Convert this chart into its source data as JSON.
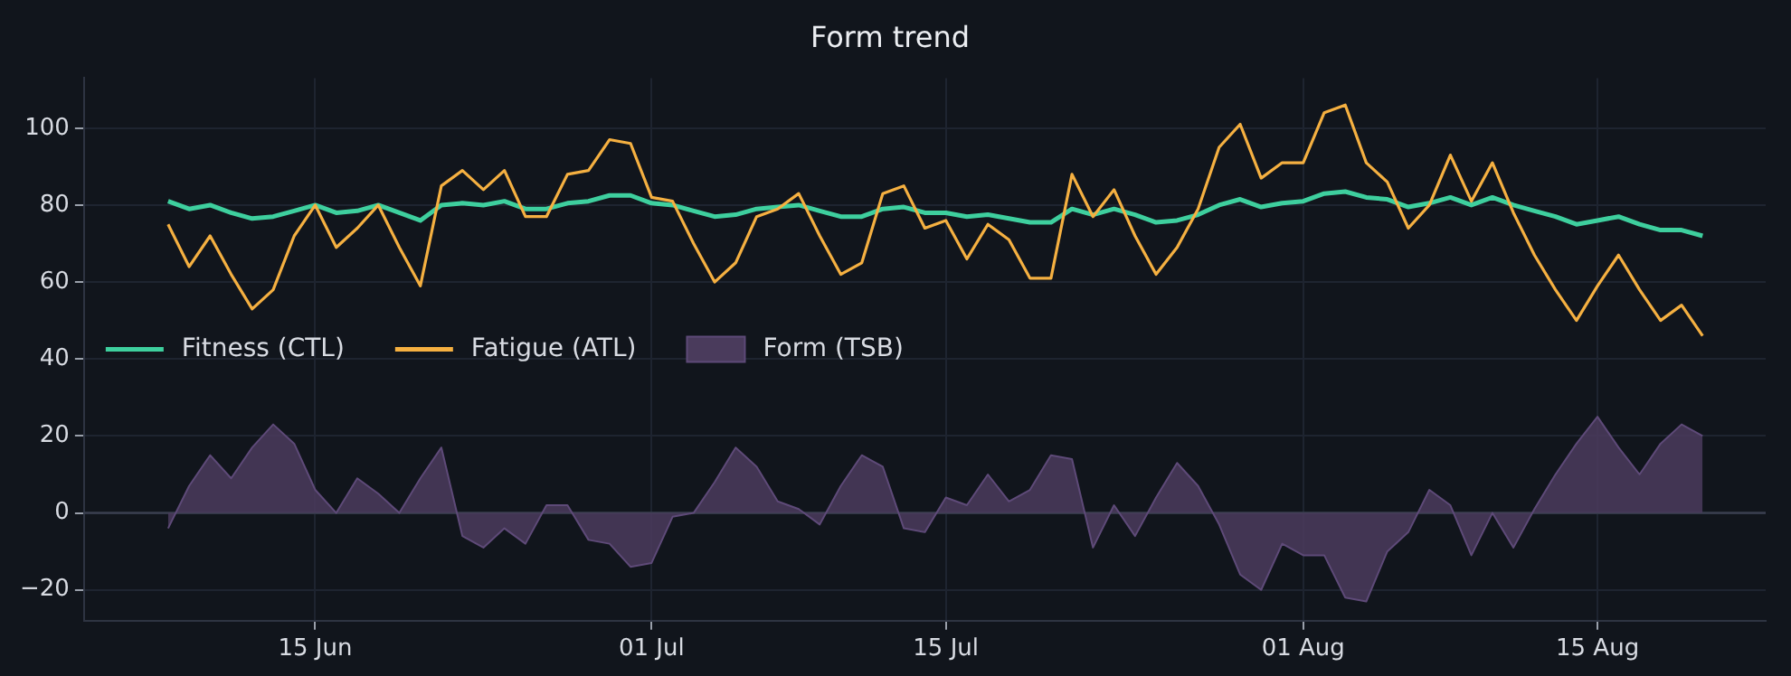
{
  "chart_data": {
    "type": "line",
    "title": "Form trend",
    "x": [
      "--06-08",
      "--06-09",
      "--06-10",
      "--06-11",
      "--06-12",
      "--06-13",
      "--06-14",
      "--06-15",
      "--06-16",
      "--06-17",
      "--06-18",
      "--06-19",
      "--06-20",
      "--06-21",
      "--06-22",
      "--06-23",
      "--06-24",
      "--06-25",
      "--06-26",
      "--06-27",
      "--06-28",
      "--06-29",
      "--06-30",
      "--07-01",
      "--07-02",
      "--07-03",
      "--07-04",
      "--07-05",
      "--07-06",
      "--07-07",
      "--07-08",
      "--07-09",
      "--07-10",
      "--07-11",
      "--07-12",
      "--07-13",
      "--07-14",
      "--07-15",
      "--07-16",
      "--07-17",
      "--07-18",
      "--07-19",
      "--07-20",
      "--07-21",
      "--07-22",
      "--07-23",
      "--07-24",
      "--07-25",
      "--07-26",
      "--07-27",
      "--07-28",
      "--07-29",
      "--07-30",
      "--07-31",
      "--08-01",
      "--08-02",
      "--08-03",
      "--08-04",
      "--08-05",
      "--08-06",
      "--08-07",
      "--08-08",
      "--08-09",
      "--08-10",
      "--08-11",
      "--08-12",
      "--08-13",
      "--08-14",
      "--08-15",
      "--08-16",
      "--08-17",
      "--08-18",
      "--08-19",
      "--08-20"
    ],
    "series": [
      {
        "name": "Fitness (CTL)",
        "color": "#3ecf9e",
        "values": [
          81,
          79,
          80,
          78,
          76.5,
          77,
          78.5,
          80,
          78,
          78.5,
          80,
          78,
          76,
          80,
          80.5,
          80,
          81,
          79,
          79,
          80.5,
          81,
          82.5,
          82.5,
          80.5,
          80,
          78.5,
          77,
          77.5,
          79,
          79.5,
          80,
          78.5,
          77,
          77,
          79,
          79.5,
          78,
          78,
          77,
          77.5,
          76.5,
          75.5,
          75.5,
          79,
          77.5,
          79,
          77.5,
          75.5,
          76,
          77.5,
          80,
          81.5,
          79.5,
          80.5,
          81,
          83,
          83.5,
          82,
          81.5,
          79.5,
          80.5,
          82,
          80,
          82,
          80,
          78.5,
          77,
          75,
          76,
          77,
          75,
          73.5,
          73.5,
          72
        ]
      },
      {
        "name": "Fatigue (ATL)",
        "color": "#f5b041",
        "values": [
          75,
          64,
          72,
          62,
          53,
          58,
          72,
          80,
          69,
          74,
          80,
          69,
          59,
          85,
          89,
          84,
          89,
          77,
          77,
          88,
          89,
          97,
          96,
          82,
          81,
          70,
          60,
          65,
          77,
          79,
          83,
          72,
          62,
          65,
          83,
          85,
          74,
          76,
          66,
          75,
          71,
          61,
          61,
          88,
          77,
          84,
          72,
          62,
          69,
          79,
          95,
          101,
          87,
          91,
          91,
          104,
          106,
          91,
          86,
          74,
          80,
          93,
          81,
          91,
          78,
          67,
          58,
          50,
          59,
          67,
          58,
          50,
          54,
          46
        ]
      },
      {
        "name": "Form (TSB)",
        "type": "area",
        "color": "#4a3b5c",
        "values": [
          -4,
          7,
          15,
          9,
          17,
          23,
          18,
          6,
          0,
          9,
          5,
          0,
          9,
          17,
          -6,
          -9,
          -4,
          -8,
          2,
          2,
          -7,
          -8,
          -14,
          -13,
          -1,
          0,
          8,
          17,
          12,
          3,
          1,
          -3,
          7,
          15,
          12,
          -4,
          -5,
          4,
          2,
          10,
          3,
          6,
          15,
          14,
          -9,
          2,
          -6,
          4,
          13,
          7,
          -3,
          -16,
          -20,
          -8,
          -11,
          -11,
          -22,
          -23,
          -10,
          -5,
          6,
          2,
          -11,
          0,
          -9,
          1,
          10,
          18,
          25,
          17,
          10,
          18,
          23,
          20
        ]
      }
    ],
    "xlim": [
      "--06-04",
      "--08-23"
    ],
    "xticks": [
      {
        "value": "--06-15",
        "label": "15 Jun"
      },
      {
        "value": "--07-01",
        "label": "01 Jul"
      },
      {
        "value": "--07-15",
        "label": "15 Jul"
      },
      {
        "value": "--08-01",
        "label": "01 Aug"
      },
      {
        "value": "--08-15",
        "label": "15 Aug"
      }
    ],
    "ylim": [
      -28,
      113
    ],
    "yticks": [
      -20,
      0,
      20,
      40,
      60,
      80,
      100
    ],
    "ref_lines": [
      {
        "axis": "y",
        "value": 0,
        "color": "#3a3f4f"
      }
    ],
    "grid": true,
    "legend": "left"
  }
}
